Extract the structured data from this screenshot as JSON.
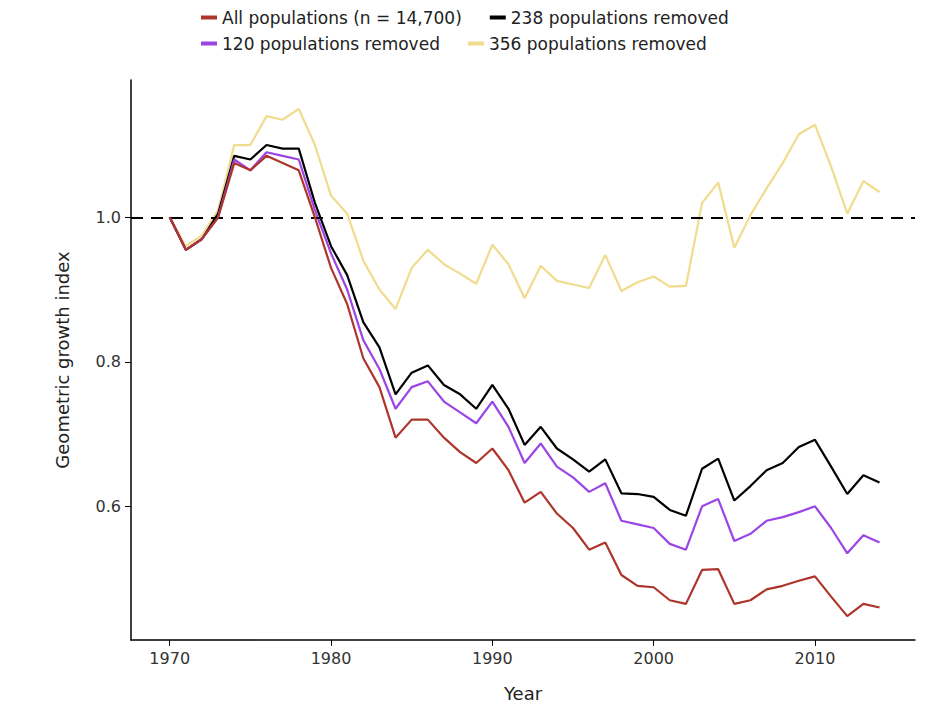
{
  "chart_data": {
    "type": "line",
    "x_label": "Year",
    "y_label": "Geometric growth index",
    "x": [
      1970,
      1971,
      1972,
      1973,
      1974,
      1975,
      1976,
      1977,
      1978,
      1979,
      1980,
      1981,
      1982,
      1983,
      1984,
      1985,
      1986,
      1987,
      1988,
      1989,
      1990,
      1991,
      1992,
      1993,
      1994,
      1995,
      1996,
      1997,
      1998,
      1999,
      2000,
      2001,
      2002,
      2003,
      2004,
      2005,
      2006,
      2007,
      2008,
      2009,
      2010,
      2011,
      2012,
      2013,
      2014
    ],
    "xlim": [
      1967.6,
      2016.2
    ],
    "xticks": [
      1970,
      1980,
      1990,
      2000,
      2010
    ],
    "ylim": [
      0.415,
      1.19
    ],
    "yticks": [
      0.6,
      0.8,
      {
        "value": 1,
        "label": "1.0"
      }
    ],
    "grid": false,
    "legend": "top",
    "reference_line": {
      "y": 1,
      "line_style": "dashed",
      "color": "#000000"
    },
    "series": [
      {
        "name": "356 populations removed",
        "color": "#f0dc8c",
        "line_style": "solid",
        "values": [
          1.0,
          0.96,
          0.975,
          1.01,
          1.1,
          1.1,
          1.14,
          1.135,
          1.15,
          1.1,
          1.03,
          1.005,
          0.94,
          0.9,
          0.873,
          0.93,
          0.955,
          0.935,
          0.922,
          0.908,
          0.962,
          0.935,
          0.888,
          0.933,
          0.912,
          0.907,
          0.902,
          0.948,
          0.898,
          0.91,
          0.918,
          0.904,
          0.905,
          1.02,
          1.048,
          0.958,
          1.003,
          1.04,
          1.075,
          1.115,
          1.128,
          1.07,
          1.005,
          1.05,
          1.035
        ]
      },
      {
        "name": "238 populations removed",
        "color": "#000000",
        "line_style": "solid",
        "values": [
          1.0,
          0.955,
          0.97,
          1.005,
          1.085,
          1.08,
          1.1,
          1.095,
          1.095,
          1.02,
          0.96,
          0.92,
          0.855,
          0.82,
          0.755,
          0.785,
          0.795,
          0.768,
          0.755,
          0.735,
          0.768,
          0.735,
          0.685,
          0.71,
          0.68,
          0.665,
          0.648,
          0.665,
          0.618,
          0.617,
          0.613,
          0.595,
          0.587,
          0.652,
          0.666,
          0.608,
          0.628,
          0.65,
          0.66,
          0.682,
          0.692,
          0.655,
          0.617,
          0.643,
          0.633
        ]
      },
      {
        "name": "120 populations removed",
        "color": "#9b45e4",
        "line_style": "solid",
        "values": [
          1.0,
          0.955,
          0.97,
          1.0,
          1.08,
          1.065,
          1.09,
          1.085,
          1.08,
          1.01,
          0.95,
          0.9,
          0.83,
          0.79,
          0.735,
          0.765,
          0.773,
          0.745,
          0.73,
          0.715,
          0.745,
          0.71,
          0.66,
          0.687,
          0.655,
          0.64,
          0.62,
          0.632,
          0.58,
          0.575,
          0.57,
          0.548,
          0.54,
          0.6,
          0.61,
          0.552,
          0.562,
          0.58,
          0.585,
          0.592,
          0.6,
          0.57,
          0.535,
          0.56,
          0.55
        ]
      },
      {
        "name": "All populations (n = 14,700)",
        "color": "#ad352b",
        "line_style": "solid",
        "values": [
          1.0,
          0.955,
          0.97,
          1.0,
          1.075,
          1.065,
          1.085,
          1.075,
          1.065,
          1.0,
          0.93,
          0.88,
          0.805,
          0.765,
          0.695,
          0.72,
          0.72,
          0.695,
          0.675,
          0.66,
          0.68,
          0.65,
          0.605,
          0.62,
          0.59,
          0.57,
          0.54,
          0.55,
          0.505,
          0.49,
          0.488,
          0.47,
          0.465,
          0.512,
          0.513,
          0.465,
          0.47,
          0.485,
          0.49,
          0.497,
          0.503,
          0.475,
          0.448,
          0.465,
          0.46
        ]
      }
    ]
  }
}
